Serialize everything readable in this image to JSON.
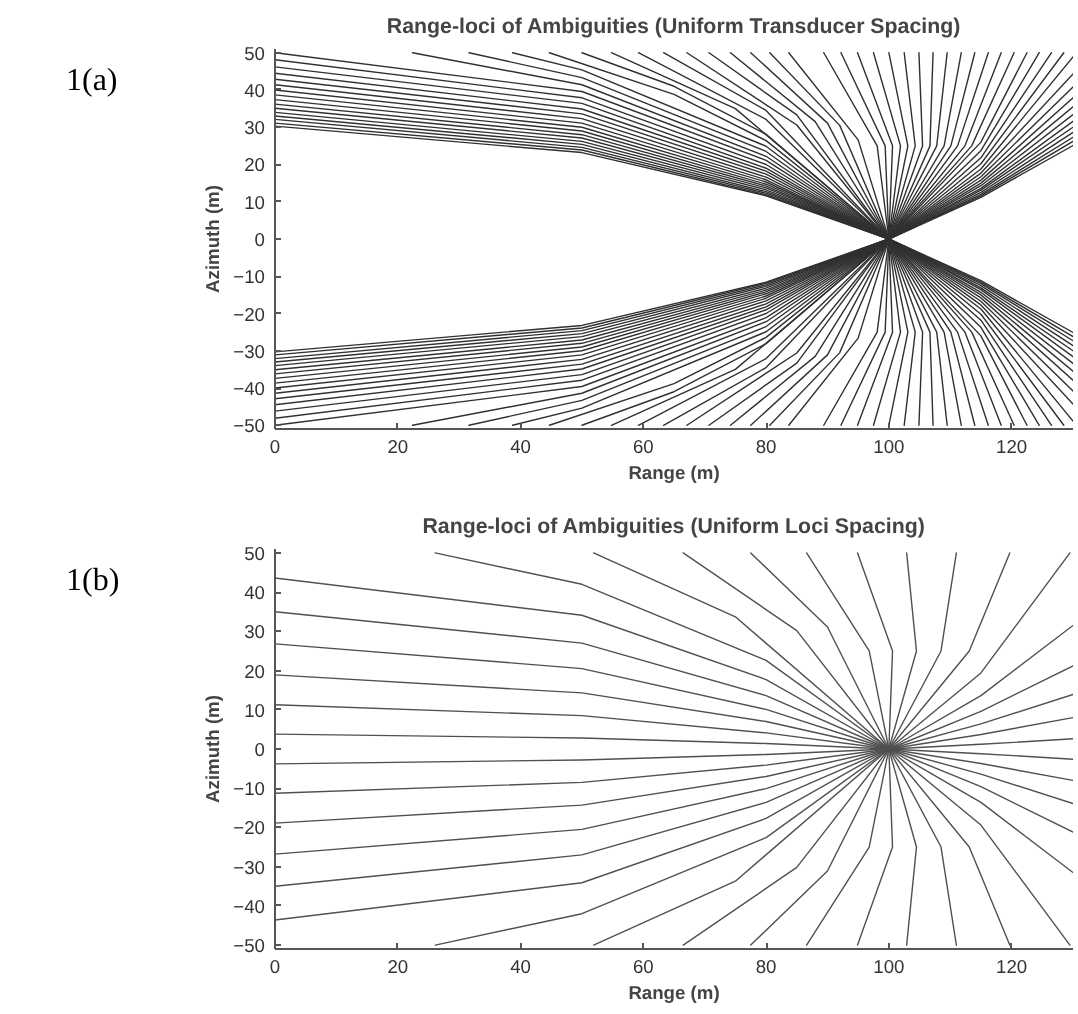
{
  "chart_data": [
    {
      "type": "line",
      "title": "Range-loci of Ambiguities (Uniform Transducer Spacing)",
      "xlabel": "Range (m)",
      "ylabel": "Azimuth (m)",
      "annotations": [
        "1(a)"
      ],
      "xlim": [
        0,
        130
      ],
      "ylim": [
        -51,
        51
      ],
      "xticks": [
        0,
        20,
        40,
        60,
        80,
        100,
        120
      ],
      "yticks": [
        -50,
        -40,
        -30,
        -20,
        -10,
        0,
        10,
        20,
        30,
        40,
        50
      ],
      "series": [
        {
          "color": "#303030",
          "x": [
            0,
            50,
            80,
            100,
            115,
            130
          ],
          "values": [
            30.3,
            23.2,
            11.6,
            0,
            -11.2,
            -25.1
          ]
        },
        {
          "color": "#303030",
          "x": [
            0,
            50,
            80,
            100,
            115,
            130
          ],
          "values": [
            31.1,
            23.9,
            11.9,
            0,
            -11.6,
            -26.2
          ]
        },
        {
          "color": "#303030",
          "x": [
            0,
            50,
            80,
            100,
            115,
            130
          ],
          "values": [
            32.1,
            24.6,
            12.3,
            0,
            -12.0,
            -27.3
          ]
        },
        {
          "color": "#303030",
          "x": [
            0,
            50,
            80,
            100,
            115,
            130
          ],
          "values": [
            33.0,
            25.4,
            12.7,
            0,
            -12.5,
            -28.6
          ]
        },
        {
          "color": "#303030",
          "x": [
            0,
            50,
            80,
            100,
            115,
            130
          ],
          "values": [
            34.0,
            26.2,
            13.2,
            0,
            -13.1,
            -30.0
          ]
        },
        {
          "color": "#303030",
          "x": [
            0,
            50,
            80,
            100,
            115,
            130
          ],
          "values": [
            35.1,
            27.1,
            13.7,
            0,
            -13.6,
            -31.6
          ]
        },
        {
          "color": "#303030",
          "x": [
            0,
            50,
            80,
            100,
            115,
            130
          ],
          "values": [
            36.2,
            28.0,
            14.2,
            0,
            -14.3,
            -33.4
          ]
        },
        {
          "color": "#303030",
          "x": [
            0,
            50,
            80,
            100,
            115,
            130
          ],
          "values": [
            37.4,
            29.0,
            14.7,
            0,
            -15.0,
            -35.5
          ]
        },
        {
          "color": "#303030",
          "x": [
            0,
            50,
            80,
            100,
            115,
            130
          ],
          "values": [
            38.7,
            30.0,
            15.3,
            0,
            -15.8,
            -37.9
          ]
        },
        {
          "color": "#303030",
          "x": [
            0,
            50,
            80,
            100,
            115,
            130
          ],
          "values": [
            40.0,
            31.1,
            15.9,
            0,
            -16.7,
            -40.8
          ]
        },
        {
          "color": "#303030",
          "x": [
            0,
            50,
            80,
            100,
            115,
            130
          ],
          "values": [
            41.4,
            32.3,
            16.6,
            0,
            -17.7,
            -44.3
          ]
        },
        {
          "color": "#303030",
          "x": [
            0,
            50,
            80,
            100,
            115,
            130
          ],
          "values": [
            42.9,
            33.6,
            17.4,
            0,
            -18.8,
            -48.9
          ]
        },
        {
          "color": "#303030",
          "x": [
            0,
            50,
            80,
            100,
            115,
            128.5
          ],
          "values": [
            44.5,
            34.9,
            18.2,
            0,
            -20.2,
            -50
          ]
        },
        {
          "color": "#303030",
          "x": [
            0,
            50,
            80,
            100,
            115,
            126.5
          ],
          "values": [
            46.2,
            36.4,
            19.0,
            0,
            -21.8,
            -50
          ]
        },
        {
          "color": "#303030",
          "x": [
            0,
            50,
            80,
            100,
            115,
            124.5
          ],
          "values": [
            48.1,
            37.9,
            20.0,
            0,
            -23.7,
            -50
          ]
        },
        {
          "color": "#303030",
          "x": [
            0,
            50,
            80,
            100,
            115,
            122.5
          ],
          "values": [
            50.0,
            39.6,
            21.1,
            0,
            -26.0,
            -50
          ]
        },
        {
          "color": "#303030",
          "x": [
            22.4,
            50,
            80,
            100,
            113.5,
            120.4
          ],
          "values": [
            50,
            41.4,
            22.2,
            0,
            -25,
            -50
          ]
        },
        {
          "color": "#303030",
          "x": [
            31.6,
            50,
            80,
            100,
            112.4,
            118.3
          ],
          "values": [
            50,
            43.3,
            23.5,
            0,
            -25,
            -50
          ]
        },
        {
          "color": "#303030",
          "x": [
            38.7,
            50,
            80,
            100,
            111.2,
            116.2
          ],
          "values": [
            50,
            45.4,
            24.9,
            0,
            -25,
            -50
          ]
        },
        {
          "color": "#303030",
          "x": [
            44.7,
            65,
            80,
            100,
            110.1,
            114.0
          ],
          "values": [
            50,
            38.8,
            26.4,
            0,
            -25,
            -50
          ]
        },
        {
          "color": "#303030",
          "x": [
            50,
            65,
            80,
            100,
            109.0,
            111.8
          ],
          "values": [
            50,
            41.0,
            28.1,
            0,
            -25,
            -50
          ]
        },
        {
          "color": "#303030",
          "x": [
            54.8,
            75,
            100,
            107.8,
            109.5
          ],
          "values": [
            50,
            35.0,
            0,
            -25,
            -50
          ]
        },
        {
          "color": "#303030",
          "x": [
            59.2,
            80,
            100,
            106.7,
            107.2
          ],
          "values": [
            50,
            32.1,
            0,
            -25,
            -50
          ]
        },
        {
          "color": "#303030",
          "x": [
            63.3,
            80,
            100,
            105.5,
            104.9
          ],
          "values": [
            50,
            34.5,
            0,
            -25,
            -50
          ]
        },
        {
          "color": "#303030",
          "x": [
            67.1,
            85,
            100,
            104.3,
            102.5
          ],
          "values": [
            50,
            30.6,
            0,
            -25,
            -50
          ]
        },
        {
          "color": "#303030",
          "x": [
            70.7,
            85,
            100,
            103.1,
            100.0
          ],
          "values": [
            50,
            33.3,
            0,
            -25,
            -50
          ]
        },
        {
          "color": "#303030",
          "x": [
            74.2,
            88,
            100,
            101.9,
            97.5
          ],
          "values": [
            50,
            31.5,
            0,
            -25,
            -50
          ]
        },
        {
          "color": "#303030",
          "x": [
            77.5,
            90,
            100,
            100.6,
            94.9
          ],
          "values": [
            50,
            31.1,
            0,
            -25,
            -50
          ]
        },
        {
          "color": "#303030",
          "x": [
            80.6,
            92,
            100,
            99.4,
            92.2
          ],
          "values": [
            50,
            30.5,
            0,
            -25,
            -50
          ]
        },
        {
          "color": "#303030",
          "x": [
            83.7,
            95,
            100,
            98.1,
            89.4
          ],
          "values": [
            50,
            26.6,
            0,
            -25,
            -50
          ]
        },
        {
          "color": "#303030",
          "x": [
            0,
            50,
            80,
            100,
            115,
            130
          ],
          "values": [
            -30.3,
            -23.2,
            -11.6,
            0,
            11.2,
            25.1
          ]
        },
        {
          "color": "#303030",
          "x": [
            0,
            50,
            80,
            100,
            115,
            130
          ],
          "values": [
            -31.1,
            -23.9,
            -11.9,
            0,
            11.6,
            26.2
          ]
        },
        {
          "color": "#303030",
          "x": [
            0,
            50,
            80,
            100,
            115,
            130
          ],
          "values": [
            -32.1,
            -24.6,
            -12.3,
            0,
            12.0,
            27.3
          ]
        },
        {
          "color": "#303030",
          "x": [
            0,
            50,
            80,
            100,
            115,
            130
          ],
          "values": [
            -33.0,
            -25.4,
            -12.7,
            0,
            12.5,
            28.6
          ]
        },
        {
          "color": "#303030",
          "x": [
            0,
            50,
            80,
            100,
            115,
            130
          ],
          "values": [
            -34.0,
            -26.2,
            -13.2,
            0,
            13.1,
            30.0
          ]
        },
        {
          "color": "#303030",
          "x": [
            0,
            50,
            80,
            100,
            115,
            130
          ],
          "values": [
            -35.1,
            -27.1,
            -13.7,
            0,
            13.6,
            31.6
          ]
        },
        {
          "color": "#303030",
          "x": [
            0,
            50,
            80,
            100,
            115,
            130
          ],
          "values": [
            -36.2,
            -28.0,
            -14.2,
            0,
            14.3,
            33.4
          ]
        },
        {
          "color": "#303030",
          "x": [
            0,
            50,
            80,
            100,
            115,
            130
          ],
          "values": [
            -37.4,
            -29.0,
            -14.7,
            0,
            15.0,
            35.5
          ]
        },
        {
          "color": "#303030",
          "x": [
            0,
            50,
            80,
            100,
            115,
            130
          ],
          "values": [
            -38.7,
            -30.0,
            -15.3,
            0,
            15.8,
            37.9
          ]
        },
        {
          "color": "#303030",
          "x": [
            0,
            50,
            80,
            100,
            115,
            130
          ],
          "values": [
            -40.0,
            -31.1,
            -15.9,
            0,
            16.7,
            40.8
          ]
        },
        {
          "color": "#303030",
          "x": [
            0,
            50,
            80,
            100,
            115,
            130
          ],
          "values": [
            -41.4,
            -32.3,
            -16.6,
            0,
            17.7,
            44.3
          ]
        },
        {
          "color": "#303030",
          "x": [
            0,
            50,
            80,
            100,
            115,
            130
          ],
          "values": [
            -42.9,
            -33.6,
            -17.4,
            0,
            18.8,
            48.9
          ]
        },
        {
          "color": "#303030",
          "x": [
            0,
            50,
            80,
            100,
            115,
            128.5
          ],
          "values": [
            -44.5,
            -34.9,
            -18.2,
            0,
            20.2,
            50
          ]
        },
        {
          "color": "#303030",
          "x": [
            0,
            50,
            80,
            100,
            115,
            126.5
          ],
          "values": [
            -46.2,
            -36.4,
            -19.0,
            0,
            21.8,
            50
          ]
        },
        {
          "color": "#303030",
          "x": [
            0,
            50,
            80,
            100,
            115,
            124.5
          ],
          "values": [
            -48.1,
            -37.9,
            -20.0,
            0,
            23.7,
            50
          ]
        },
        {
          "color": "#303030",
          "x": [
            0,
            50,
            80,
            100,
            115,
            122.5
          ],
          "values": [
            -50.0,
            -39.6,
            -21.1,
            0,
            26.0,
            50
          ]
        },
        {
          "color": "#303030",
          "x": [
            22.4,
            50,
            80,
            100,
            113.5,
            120.4
          ],
          "values": [
            -50,
            -41.4,
            -22.2,
            0,
            25,
            50
          ]
        },
        {
          "color": "#303030",
          "x": [
            31.6,
            50,
            80,
            100,
            112.4,
            118.3
          ],
          "values": [
            -50,
            -43.3,
            -23.5,
            0,
            25,
            50
          ]
        },
        {
          "color": "#303030",
          "x": [
            38.7,
            50,
            80,
            100,
            111.2,
            116.2
          ],
          "values": [
            -50,
            -45.4,
            -24.9,
            0,
            25,
            50
          ]
        },
        {
          "color": "#303030",
          "x": [
            44.7,
            65,
            80,
            100,
            110.1,
            114.0
          ],
          "values": [
            -50,
            -38.8,
            -26.4,
            0,
            25,
            50
          ]
        },
        {
          "color": "#303030",
          "x": [
            50,
            65,
            80,
            100,
            109.0,
            111.8
          ],
          "values": [
            -50,
            -41.0,
            -28.1,
            0,
            25,
            50
          ]
        },
        {
          "color": "#303030",
          "x": [
            54.8,
            75,
            100,
            107.8,
            109.5
          ],
          "values": [
            -50,
            -35.0,
            0,
            25,
            50
          ]
        },
        {
          "color": "#303030",
          "x": [
            59.2,
            80,
            100,
            106.7,
            107.2
          ],
          "values": [
            -50,
            -32.1,
            0,
            25,
            50
          ]
        },
        {
          "color": "#303030",
          "x": [
            63.3,
            80,
            100,
            105.5,
            104.9
          ],
          "values": [
            -50,
            -34.5,
            0,
            25,
            50
          ]
        },
        {
          "color": "#303030",
          "x": [
            67.1,
            85,
            100,
            104.3,
            102.5
          ],
          "values": [
            -50,
            -30.6,
            0,
            25,
            50
          ]
        },
        {
          "color": "#303030",
          "x": [
            70.7,
            85,
            100,
            103.1,
            100.0
          ],
          "values": [
            -50,
            -33.3,
            0,
            25,
            50
          ]
        },
        {
          "color": "#303030",
          "x": [
            74.2,
            88,
            100,
            101.9,
            97.5
          ],
          "values": [
            -50,
            -31.5,
            0,
            25,
            50
          ]
        },
        {
          "color": "#303030",
          "x": [
            77.5,
            90,
            100,
            100.6,
            94.9
          ],
          "values": [
            -50,
            -31.1,
            0,
            25,
            50
          ]
        },
        {
          "color": "#303030",
          "x": [
            80.6,
            92,
            100,
            99.4,
            92.2
          ],
          "values": [
            -50,
            -30.5,
            0,
            25,
            50
          ]
        },
        {
          "color": "#303030",
          "x": [
            83.7,
            95,
            100,
            98.1,
            89.4
          ],
          "values": [
            -50,
            -26.6,
            0,
            25,
            50
          ]
        }
      ]
    },
    {
      "type": "line",
      "title": "Range-loci of Ambiguities (Uniform Loci Spacing)",
      "xlabel": "Range (m)",
      "ylabel": "Azimuth (m)",
      "annotations": [
        "1(b)"
      ],
      "xlim": [
        0,
        130
      ],
      "ylim": [
        -51,
        51
      ],
      "xticks": [
        0,
        20,
        40,
        60,
        80,
        100,
        120
      ],
      "yticks": [
        -50,
        -40,
        -30,
        -20,
        -10,
        0,
        10,
        20,
        30,
        40,
        50
      ],
      "series": [
        {
          "color": "#505050",
          "x": [
            0,
            50,
            80,
            100,
            115,
            130
          ],
          "values": [
            3.8,
            2.8,
            1.4,
            0,
            -1.2,
            -2.6
          ]
        },
        {
          "color": "#505050",
          "x": [
            0,
            50,
            80,
            100,
            115,
            130
          ],
          "values": [
            11.3,
            8.5,
            4.1,
            0,
            -3.7,
            -8.0
          ]
        },
        {
          "color": "#505050",
          "x": [
            0,
            50,
            80,
            100,
            115,
            130
          ],
          "values": [
            18.9,
            14.3,
            7.0,
            0,
            -6.4,
            -13.9
          ]
        },
        {
          "color": "#505050",
          "x": [
            0,
            50,
            80,
            100,
            115,
            130
          ],
          "values": [
            26.8,
            20.5,
            10.1,
            0,
            -9.6,
            -21.2
          ]
        },
        {
          "color": "#505050",
          "x": [
            0,
            50,
            80,
            100,
            115,
            130
          ],
          "values": [
            35.0,
            27.0,
            13.6,
            0,
            -13.6,
            -31.5
          ]
        },
        {
          "color": "#505050",
          "x": [
            0,
            50,
            80,
            100,
            115,
            129.5
          ],
          "values": [
            43.6,
            34.1,
            17.7,
            0,
            -19.4,
            -50
          ]
        },
        {
          "color": "#505050",
          "x": [
            26.1,
            50,
            80,
            100,
            113.1,
            119.7
          ],
          "values": [
            50,
            42.0,
            22.6,
            0,
            -25,
            -50
          ]
        },
        {
          "color": "#505050",
          "x": [
            51.9,
            75,
            100,
            108.5,
            111.0
          ],
          "values": [
            50,
            33.7,
            0,
            -25,
            -50
          ]
        },
        {
          "color": "#505050",
          "x": [
            66.5,
            85,
            100,
            104.5,
            102.9
          ],
          "values": [
            50,
            30.2,
            0,
            -25,
            -50
          ]
        },
        {
          "color": "#505050",
          "x": [
            77.5,
            90,
            100,
            100.6,
            94.9
          ],
          "values": [
            50,
            31.1,
            0,
            -25,
            -50
          ]
        },
        {
          "color": "#505050",
          "x": [
            86.6,
            96.8,
            100,
            96.8,
            86.6
          ],
          "values": [
            50,
            25,
            0,
            -25,
            -50
          ]
        },
        {
          "color": "#505050",
          "x": [
            77.5,
            90,
            100,
            100.6,
            94.9
          ],
          "values": [
            -50,
            -31.1,
            0,
            25,
            50
          ]
        },
        {
          "color": "#505050",
          "x": [
            66.5,
            85,
            100,
            104.5,
            102.9
          ],
          "values": [
            -50,
            -30.2,
            0,
            25,
            50
          ]
        },
        {
          "color": "#505050",
          "x": [
            51.9,
            75,
            100,
            108.5,
            111.0
          ],
          "values": [
            -50,
            -33.7,
            0,
            25,
            50
          ]
        },
        {
          "color": "#505050",
          "x": [
            26.1,
            50,
            80,
            100,
            113.1,
            119.7
          ],
          "values": [
            -50,
            -42.0,
            -22.6,
            0,
            25,
            50
          ]
        },
        {
          "color": "#505050",
          "x": [
            0,
            50,
            80,
            100,
            115,
            129.5
          ],
          "values": [
            -43.6,
            -34.1,
            -17.7,
            0,
            19.4,
            50
          ]
        },
        {
          "color": "#505050",
          "x": [
            0,
            50,
            80,
            100,
            115,
            130
          ],
          "values": [
            -35.0,
            -27.0,
            -13.6,
            0,
            13.6,
            31.5
          ]
        },
        {
          "color": "#505050",
          "x": [
            0,
            50,
            80,
            100,
            115,
            130
          ],
          "values": [
            -26.8,
            -20.5,
            -10.1,
            0,
            9.6,
            21.2
          ]
        },
        {
          "color": "#505050",
          "x": [
            0,
            50,
            80,
            100,
            115,
            130
          ],
          "values": [
            -18.9,
            -14.3,
            -7.0,
            0,
            6.4,
            13.9
          ]
        },
        {
          "color": "#505050",
          "x": [
            0,
            50,
            80,
            100,
            115,
            130
          ],
          "values": [
            -11.3,
            -8.5,
            -4.1,
            0,
            3.7,
            8.0
          ]
        },
        {
          "color": "#505050",
          "x": [
            0,
            50,
            80,
            100,
            115,
            130
          ],
          "values": [
            -3.8,
            -2.8,
            -1.4,
            0,
            1.2,
            2.6
          ]
        }
      ]
    }
  ]
}
